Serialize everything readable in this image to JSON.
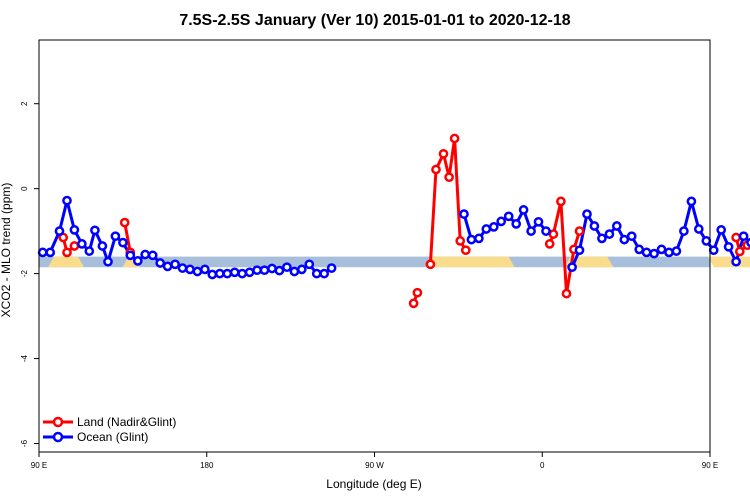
{
  "chart_data": {
    "type": "line",
    "title": "7.5S-2.5S January (Ver 10)   2015-01-01 to 2020-12-18",
    "xlabel": "Longitude (deg E)",
    "ylabel": "XCO2 - MLO trend (ppm)",
    "xlim": [
      90,
      450
    ],
    "ylim": [
      -6.2,
      3.5
    ],
    "x_ticks": [
      {
        "value": 90,
        "label": "90 E"
      },
      {
        "value": 180,
        "label": "180"
      },
      {
        "value": 270,
        "label": "90 W"
      },
      {
        "value": 360,
        "label": "0"
      },
      {
        "value": 450,
        "label": "90 E"
      },
      {
        "value": 540,
        "label": "180"
      }
    ],
    "y_ticks": [
      {
        "value": -6,
        "label": "-6"
      },
      {
        "value": -4,
        "label": "-4"
      },
      {
        "value": -2,
        "label": "-2"
      },
      {
        "value": 0,
        "label": "0"
      },
      {
        "value": 2,
        "label": "2"
      }
    ],
    "grid": false,
    "legend_position": "bottom-left",
    "surface_band": {
      "y_range": [
        -1.85,
        -1.6
      ],
      "ocean_color": "#a8bfdc",
      "land_color": "#f9dc8c",
      "land_segments": [
        [
          97,
          112
        ],
        [
          137,
          142
        ],
        [
          300,
          343
        ],
        [
          374,
          396
        ],
        [
          458,
          472
        ],
        [
          497,
          502
        ]
      ]
    },
    "series": [
      {
        "name": "Land (Nadir&Glint)",
        "color": "#ff0000",
        "segments": [
          [
            [
              103,
              -1.15
            ],
            [
              105,
              -1.5
            ],
            [
              109,
              -1.35
            ]
          ],
          [
            [
              136,
              -0.8
            ],
            [
              139,
              -1.5
            ]
          ],
          [
            [
              291,
              -2.7
            ],
            [
              293,
              -2.45
            ]
          ],
          [
            [
              300,
              -1.78
            ],
            [
              303,
              0.45
            ],
            [
              307,
              0.82
            ],
            [
              310,
              0.27
            ],
            [
              313,
              1.18
            ],
            [
              316,
              -1.23
            ],
            [
              319,
              -1.45
            ]
          ],
          [
            [
              364,
              -1.3
            ],
            [
              366,
              -1.07
            ],
            [
              370,
              -0.3
            ],
            [
              373,
              -2.47
            ],
            [
              377,
              -1.43
            ],
            [
              380,
              -1.0
            ]
          ],
          [
            [
              464,
              -1.15
            ],
            [
              466,
              -1.48
            ],
            [
              470,
              -1.33
            ]
          ],
          [
            [
              487,
              -1.35
            ],
            [
              490,
              -0.8
            ],
            [
              492,
              -1.45
            ]
          ]
        ]
      },
      {
        "name": "Ocean (Glint)",
        "color": "#0000ff",
        "segments": [
          [
            [
              92,
              -1.5
            ],
            [
              96,
              -1.5
            ],
            [
              101,
              -1.0
            ],
            [
              105,
              -0.28
            ],
            [
              109,
              -0.97
            ],
            [
              113,
              -1.3
            ],
            [
              117,
              -1.47
            ],
            [
              120,
              -0.98
            ],
            [
              124,
              -1.35
            ],
            [
              127,
              -1.72
            ],
            [
              131,
              -1.12
            ],
            [
              135,
              -1.27
            ],
            [
              139,
              -1.57
            ],
            [
              143,
              -1.7
            ],
            [
              147,
              -1.55
            ],
            [
              151,
              -1.57
            ],
            [
              155,
              -1.75
            ],
            [
              159,
              -1.83
            ],
            [
              163,
              -1.78
            ],
            [
              167,
              -1.87
            ],
            [
              171,
              -1.9
            ],
            [
              175,
              -1.95
            ],
            [
              179,
              -1.9
            ],
            [
              183,
              -2.02
            ],
            [
              187,
              -2.0
            ],
            [
              191,
              -2.0
            ],
            [
              195,
              -1.97
            ],
            [
              199,
              -2.0
            ],
            [
              203,
              -1.97
            ],
            [
              207,
              -1.92
            ],
            [
              211,
              -1.92
            ],
            [
              215,
              -1.88
            ],
            [
              219,
              -1.93
            ],
            [
              223,
              -1.85
            ],
            [
              227,
              -1.95
            ],
            [
              231,
              -1.9
            ],
            [
              235,
              -1.78
            ],
            [
              239,
              -2.0
            ],
            [
              243,
              -2.0
            ],
            [
              247,
              -1.87
            ]
          ],
          [
            [
              318,
              -0.6
            ],
            [
              322,
              -1.2
            ],
            [
              326,
              -1.17
            ],
            [
              330,
              -0.95
            ],
            [
              334,
              -0.9
            ],
            [
              338,
              -0.77
            ],
            [
              342,
              -0.65
            ],
            [
              346,
              -0.83
            ],
            [
              350,
              -0.5
            ],
            [
              354,
              -1.0
            ],
            [
              358,
              -0.78
            ],
            [
              362,
              -1.0
            ]
          ],
          [
            [
              376,
              -1.85
            ],
            [
              380,
              -1.45
            ],
            [
              384,
              -0.6
            ],
            [
              388,
              -0.88
            ],
            [
              392,
              -1.17
            ],
            [
              396,
              -1.07
            ],
            [
              400,
              -0.88
            ],
            [
              404,
              -1.2
            ],
            [
              408,
              -1.12
            ],
            [
              412,
              -1.43
            ],
            [
              416,
              -1.5
            ],
            [
              420,
              -1.53
            ],
            [
              424,
              -1.43
            ],
            [
              428,
              -1.5
            ],
            [
              432,
              -1.47
            ],
            [
              436,
              -1.0
            ],
            [
              440,
              -0.3
            ],
            [
              444,
              -0.95
            ],
            [
              448,
              -1.23
            ],
            [
              452,
              -1.45
            ],
            [
              456,
              -0.97
            ],
            [
              460,
              -1.37
            ],
            [
              464,
              -1.72
            ],
            [
              468,
              -1.12
            ],
            [
              472,
              -1.27
            ],
            [
              476,
              -1.57
            ],
            [
              480,
              -1.7
            ],
            [
              484,
              -1.55
            ],
            [
              488,
              -1.57
            ],
            [
              492,
              -1.75
            ],
            [
              496,
              -1.83
            ]
          ]
        ]
      }
    ]
  }
}
